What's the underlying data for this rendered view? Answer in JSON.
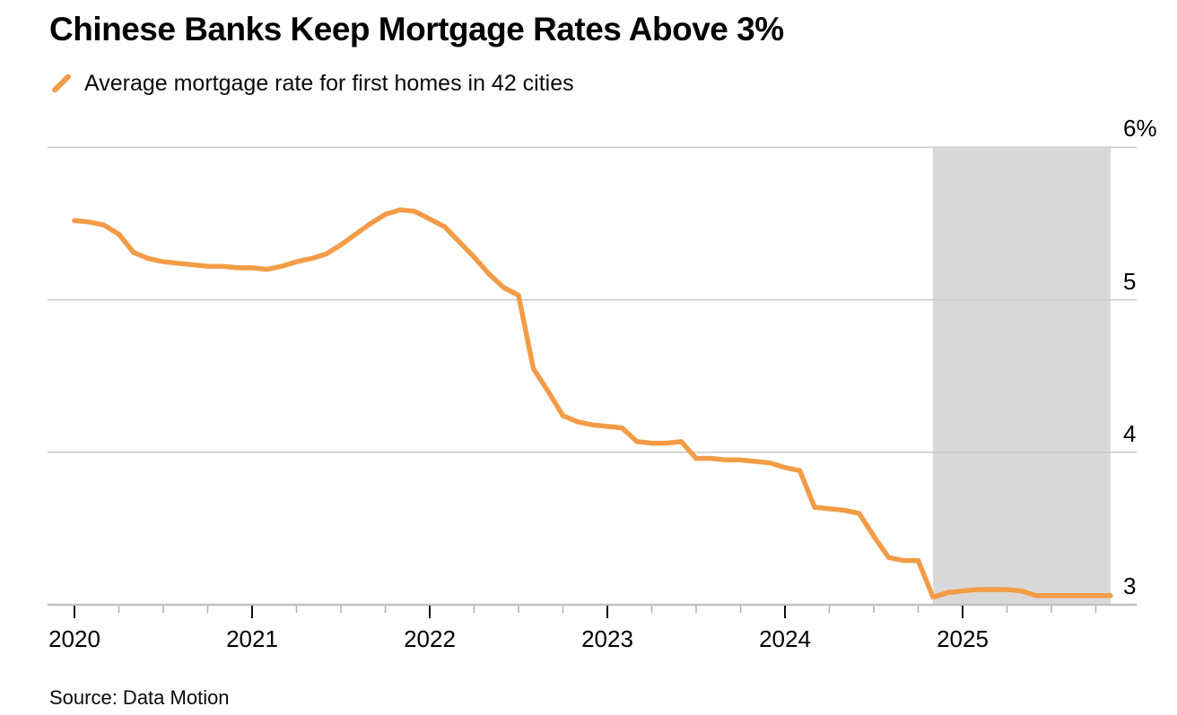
{
  "header": {
    "title": "Chinese Banks Keep Mortgage Rates Above 3%",
    "legend_label": "Average mortgage rate for first homes in 42 cities"
  },
  "footer": {
    "source": "Source: Data Motion"
  },
  "chart_data": {
    "type": "line",
    "title": "Chinese Banks Keep Mortgage Rates Above 3%",
    "unit": "%",
    "grid": "horizontal",
    "legend_position": "top-left",
    "series": [
      {
        "name": "Average mortgage rate for first homes in 42 cities",
        "color": "#F39C47",
        "start_year": 2020,
        "start_month": 1,
        "frequency": "monthly",
        "values": [
          5.52,
          5.51,
          5.49,
          5.43,
          5.31,
          5.27,
          5.25,
          5.24,
          5.23,
          5.22,
          5.22,
          5.21,
          5.21,
          5.2,
          5.22,
          5.25,
          5.27,
          5.3,
          5.36,
          5.43,
          5.5,
          5.56,
          5.59,
          5.58,
          5.53,
          5.48,
          5.38,
          5.28,
          5.17,
          5.08,
          5.03,
          4.55,
          4.4,
          4.24,
          4.2,
          4.18,
          4.17,
          4.16,
          4.07,
          4.06,
          4.06,
          4.07,
          3.96,
          3.96,
          3.95,
          3.95,
          3.94,
          3.93,
          3.9,
          3.88,
          3.64,
          3.63,
          3.62,
          3.6,
          3.45,
          3.31,
          3.29,
          3.29,
          3.05,
          3.08,
          3.09,
          3.1,
          3.1,
          3.1,
          3.09,
          3.06,
          3.06,
          3.06,
          3.06,
          3.06,
          3.06
        ]
      }
    ],
    "x_axis": {
      "tick_labels": [
        "2020",
        "2021",
        "2022",
        "2023",
        "2024",
        "2025"
      ],
      "tick_values": [
        2020,
        2021,
        2022,
        2023,
        2024,
        2025
      ],
      "minor_tick_interval_years": 0.25,
      "range": [
        2019.85,
        2025.9167
      ]
    },
    "y_axis": {
      "tick_labels": [
        "6%",
        "5",
        "4",
        "3"
      ],
      "tick_values": [
        6,
        5,
        4,
        3
      ],
      "range": [
        3,
        6
      ],
      "side": "right"
    },
    "highlight_band": {
      "from": 2024.8333,
      "to": 2025.8333,
      "color": "#D9D9D9"
    },
    "colors": {
      "line": "#F39C47",
      "gridline": "#C9C9C9",
      "axis_line": "#C2C2C2",
      "minor_tick": "#B0B0B0",
      "major_tick": "#111111",
      "band": "#D9D9D9"
    }
  }
}
